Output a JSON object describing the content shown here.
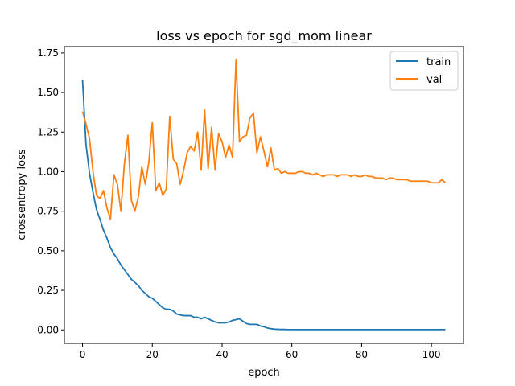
{
  "chart_data": {
    "type": "line",
    "title": "loss vs epoch for sgd_mom linear",
    "xlabel": "epoch",
    "ylabel": "crossentropy loss",
    "xlim": [
      -5.2,
      109.2
    ],
    "ylim": [
      -0.085,
      1.79
    ],
    "xticks": [
      0,
      20,
      40,
      60,
      80,
      100
    ],
    "xtick_labels": [
      "0",
      "20",
      "40",
      "60",
      "80",
      "100"
    ],
    "yticks": [
      0.0,
      0.25,
      0.5,
      0.75,
      1.0,
      1.25,
      1.5,
      1.75
    ],
    "ytick_labels": [
      "0.00",
      "0.25",
      "0.50",
      "0.75",
      "1.00",
      "1.25",
      "1.50",
      "1.75"
    ],
    "grid": false,
    "legend_position": "top-right",
    "series": [
      {
        "name": "train",
        "color": "#1f77b4",
        "x": [
          0,
          1,
          2,
          3,
          4,
          5,
          6,
          7,
          8,
          9,
          10,
          11,
          12,
          13,
          14,
          15,
          16,
          17,
          18,
          19,
          20,
          21,
          22,
          23,
          24,
          25,
          26,
          27,
          28,
          29,
          30,
          31,
          32,
          33,
          34,
          35,
          36,
          37,
          38,
          39,
          40,
          41,
          42,
          43,
          44,
          45,
          46,
          47,
          48,
          49,
          50,
          51,
          52,
          53,
          54,
          55,
          56,
          57,
          58,
          59,
          60,
          61,
          62,
          63,
          64,
          65,
          66,
          67,
          68,
          69,
          70,
          71,
          72,
          73,
          74,
          75,
          76,
          77,
          78,
          79,
          80,
          81,
          82,
          83,
          84,
          85,
          86,
          87,
          88,
          89,
          90,
          91,
          92,
          93,
          94,
          95,
          96,
          97,
          98,
          99,
          100,
          101,
          102,
          103,
          104
        ],
        "values": [
          1.58,
          1.17,
          0.99,
          0.87,
          0.76,
          0.7,
          0.63,
          0.58,
          0.52,
          0.48,
          0.45,
          0.41,
          0.38,
          0.35,
          0.32,
          0.3,
          0.28,
          0.25,
          0.23,
          0.21,
          0.2,
          0.18,
          0.16,
          0.14,
          0.13,
          0.13,
          0.12,
          0.1,
          0.095,
          0.09,
          0.09,
          0.09,
          0.08,
          0.08,
          0.07,
          0.08,
          0.07,
          0.06,
          0.05,
          0.045,
          0.045,
          0.045,
          0.05,
          0.06,
          0.065,
          0.07,
          0.055,
          0.04,
          0.035,
          0.035,
          0.035,
          0.025,
          0.02,
          0.012,
          0.008,
          0.005,
          0.004,
          0.003,
          0.003,
          0.002,
          0.002,
          0.002,
          0.002,
          0.002,
          0.002,
          0.002,
          0.002,
          0.002,
          0.002,
          0.002,
          0.002,
          0.002,
          0.002,
          0.002,
          0.002,
          0.002,
          0.002,
          0.002,
          0.002,
          0.002,
          0.002,
          0.002,
          0.002,
          0.002,
          0.002,
          0.002,
          0.002,
          0.002,
          0.002,
          0.002,
          0.002,
          0.002,
          0.002,
          0.002,
          0.002,
          0.002,
          0.002,
          0.002,
          0.002,
          0.002,
          0.002,
          0.002,
          0.002,
          0.002,
          0.002
        ]
      },
      {
        "name": "val",
        "color": "#ff7f0e",
        "x": [
          0,
          1,
          2,
          3,
          4,
          5,
          6,
          7,
          8,
          9,
          10,
          11,
          12,
          13,
          14,
          15,
          16,
          17,
          18,
          19,
          20,
          21,
          22,
          23,
          24,
          25,
          26,
          27,
          28,
          29,
          30,
          31,
          32,
          33,
          34,
          35,
          36,
          37,
          38,
          39,
          40,
          41,
          42,
          43,
          44,
          45,
          46,
          47,
          48,
          49,
          50,
          51,
          52,
          53,
          54,
          55,
          56,
          57,
          58,
          59,
          60,
          61,
          62,
          63,
          64,
          65,
          66,
          67,
          68,
          69,
          70,
          71,
          72,
          73,
          74,
          75,
          76,
          77,
          78,
          79,
          80,
          81,
          82,
          83,
          84,
          85,
          86,
          87,
          88,
          89,
          90,
          91,
          92,
          93,
          94,
          95,
          96,
          97,
          98,
          99,
          100,
          101,
          102,
          103,
          104
        ],
        "values": [
          1.38,
          1.3,
          1.21,
          1.0,
          0.85,
          0.83,
          0.88,
          0.77,
          0.7,
          0.98,
          0.92,
          0.75,
          1.05,
          1.23,
          0.82,
          0.75,
          0.84,
          1.03,
          0.92,
          1.06,
          1.31,
          0.88,
          0.93,
          0.85,
          0.89,
          1.35,
          1.08,
          1.05,
          0.92,
          1.01,
          1.12,
          1.16,
          1.13,
          1.25,
          1.01,
          1.39,
          1.02,
          1.28,
          1.01,
          1.24,
          1.19,
          1.09,
          1.17,
          1.09,
          1.71,
          1.19,
          1.22,
          1.23,
          1.34,
          1.37,
          1.12,
          1.22,
          1.13,
          1.03,
          1.15,
          1.01,
          1.02,
          0.99,
          1.0,
          0.99,
          0.99,
          0.99,
          1.0,
          1.0,
          0.99,
          0.99,
          0.98,
          0.99,
          0.98,
          0.97,
          0.98,
          0.98,
          0.98,
          0.97,
          0.98,
          0.98,
          0.98,
          0.97,
          0.98,
          0.97,
          0.97,
          0.98,
          0.97,
          0.97,
          0.96,
          0.96,
          0.96,
          0.95,
          0.96,
          0.96,
          0.95,
          0.95,
          0.95,
          0.95,
          0.94,
          0.94,
          0.94,
          0.94,
          0.94,
          0.94,
          0.93,
          0.93,
          0.93,
          0.95,
          0.93
        ]
      }
    ]
  }
}
